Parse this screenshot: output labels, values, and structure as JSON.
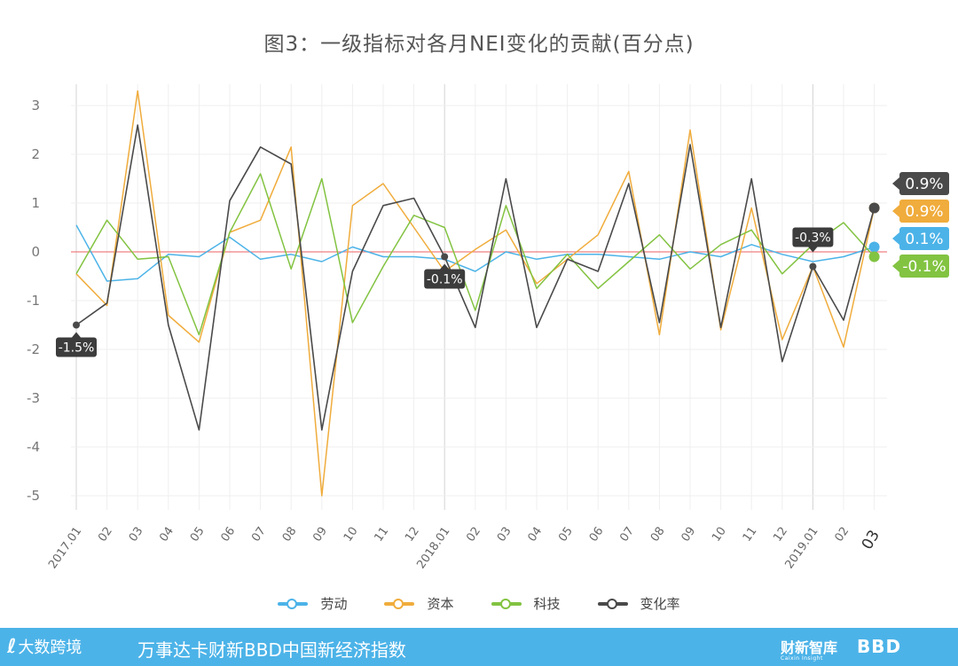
{
  "title": "图3：一级指标对各月NEI变化的贡献(百分点)",
  "chart_data": {
    "type": "line",
    "title": "图3：一级指标对各月NEI变化的贡献(百分点)",
    "categories": [
      "2017.01",
      "02",
      "03",
      "04",
      "05",
      "06",
      "07",
      "08",
      "09",
      "10",
      "11",
      "12",
      "2018.01",
      "02",
      "03",
      "04",
      "05",
      "06",
      "07",
      "08",
      "09",
      "10",
      "11",
      "12",
      "2019.01",
      "02",
      "03"
    ],
    "ylim": [
      -5.5,
      3.5
    ],
    "yticks": [
      3,
      2,
      1,
      0,
      -1,
      -2,
      -3,
      -4,
      -5
    ],
    "grid": true,
    "series": [
      {
        "name": "劳动",
        "color": "#4cb3e8",
        "values": [
          0.55,
          -0.6,
          -0.55,
          -0.05,
          -0.1,
          0.3,
          -0.15,
          -0.05,
          -0.2,
          0.1,
          -0.1,
          -0.1,
          -0.15,
          -0.4,
          0.0,
          -0.15,
          -0.05,
          -0.05,
          -0.1,
          -0.15,
          0.0,
          -0.1,
          0.15,
          -0.05,
          -0.2,
          -0.1,
          0.1
        ]
      },
      {
        "name": "资本",
        "color": "#f0ac3c",
        "values": [
          -0.45,
          -1.1,
          3.3,
          -1.3,
          -1.85,
          0.4,
          0.65,
          2.15,
          -5.0,
          0.95,
          1.4,
          0.5,
          -0.4,
          0.05,
          0.45,
          -0.65,
          -0.15,
          0.35,
          1.65,
          -1.7,
          2.5,
          -1.6,
          0.9,
          -1.8,
          -0.3,
          -1.95,
          0.9
        ]
      },
      {
        "name": "科技",
        "color": "#82c341",
        "values": [
          -0.45,
          0.65,
          -0.15,
          -0.1,
          -1.7,
          0.4,
          1.6,
          -0.35,
          1.5,
          -1.45,
          -0.3,
          0.75,
          0.5,
          -1.2,
          0.95,
          -0.75,
          -0.05,
          -0.75,
          -0.2,
          0.35,
          -0.35,
          0.15,
          0.45,
          -0.45,
          0.15,
          0.6,
          -0.1
        ]
      },
      {
        "name": "变化率",
        "color": "#4a4a4a",
        "values": [
          -1.5,
          -1.05,
          2.6,
          -1.5,
          -3.65,
          1.05,
          2.15,
          1.8,
          -3.65,
          -0.4,
          0.95,
          1.1,
          -0.1,
          -1.55,
          1.5,
          -1.55,
          -0.15,
          -0.4,
          1.4,
          -1.45,
          2.2,
          -1.55,
          1.5,
          -2.25,
          -0.3,
          -1.4,
          0.9
        ]
      }
    ],
    "annotations": [
      {
        "series": "变化率",
        "index": 0,
        "label": "-1.5%"
      },
      {
        "series": "变化率",
        "index": 12,
        "label": "-0.1%"
      },
      {
        "series": "变化率",
        "index": 24,
        "label": "-0.3%"
      }
    ],
    "end_labels": [
      {
        "label": "0.9%",
        "color": "#4a4a4a",
        "value": 0.9
      },
      {
        "label": "0.9%",
        "color": "#f0ac3c",
        "value": 0.9
      },
      {
        "label": "0.1%",
        "color": "#4cb3e8",
        "value": 0.1
      },
      {
        "label": "-0.1%",
        "color": "#82c341",
        "value": -0.1
      }
    ],
    "zero_line_color": "#f08080"
  },
  "footer": {
    "logo_text": "大数跨境",
    "text": "万事达卡财新BBD中国新经济指数",
    "brand1": "财新智库",
    "brand1_sub": "Caixin Insight",
    "brand2": "BBD"
  }
}
